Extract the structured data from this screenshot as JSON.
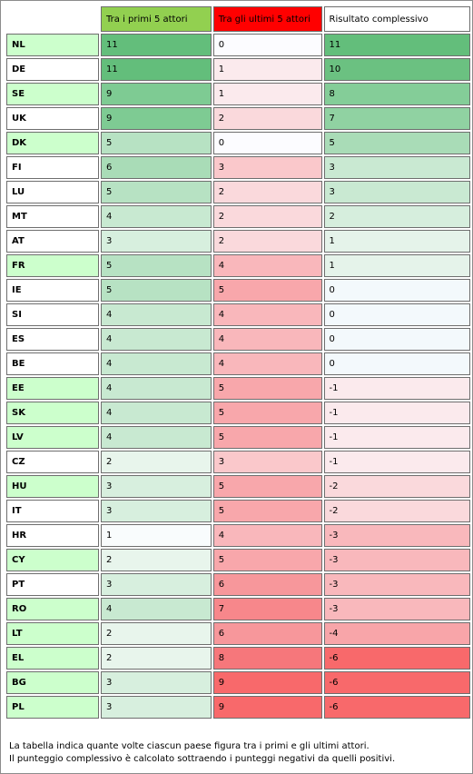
{
  "header": {
    "corner": "",
    "col1": "Tra i primi 5 attori",
    "col2": "Tra gli ultimi 5 attori",
    "col3": "Risultato complessivo",
    "col1_bg": "#92d050",
    "col2_bg": "#ff0000",
    "col3_bg": "#ffffff"
  },
  "rows": [
    {
      "country": "NL",
      "country_bg": "#ccffcc",
      "top": "11",
      "top_bg": "#63be7b",
      "bottom": "0",
      "bottom_bg": "#fcfcff",
      "total": "11",
      "total_bg": "#63be7b"
    },
    {
      "country": "DE",
      "country_bg": "#ffffff",
      "top": "11",
      "top_bg": "#63be7b",
      "bottom": "1",
      "bottom_bg": "#fbeaed",
      "total": "10",
      "total_bg": "#6bc181"
    },
    {
      "country": "SE",
      "country_bg": "#ccffcc",
      "top": "9",
      "top_bg": "#7ecb93",
      "bottom": "1",
      "bottom_bg": "#fbeaed",
      "total": "8",
      "total_bg": "#84cd98"
    },
    {
      "country": "UK",
      "country_bg": "#ffffff",
      "top": "9",
      "top_bg": "#7ecb93",
      "bottom": "2",
      "bottom_bg": "#fad9dc",
      "total": "7",
      "total_bg": "#90d2a2"
    },
    {
      "country": "DK",
      "country_bg": "#ccffcc",
      "top": "5",
      "top_bg": "#b7e2c3",
      "bottom": "0",
      "bottom_bg": "#fcfcff",
      "total": "5",
      "total_bg": "#a9dcb7"
    },
    {
      "country": "FI",
      "country_bg": "#ffffff",
      "top": "6",
      "top_bg": "#a9dcb7",
      "bottom": "3",
      "bottom_bg": "#fac8cb",
      "total": "3",
      "total_bg": "#c9e9d2"
    },
    {
      "country": "LU",
      "country_bg": "#ffffff",
      "top": "5",
      "top_bg": "#b7e2c3",
      "bottom": "2",
      "bottom_bg": "#fad9dc",
      "total": "3",
      "total_bg": "#c9e9d2"
    },
    {
      "country": "MT",
      "country_bg": "#ffffff",
      "top": "4",
      "top_bg": "#c8e9d1",
      "bottom": "2",
      "bottom_bg": "#fad9dc",
      "total": "2",
      "total_bg": "#d6eedd"
    },
    {
      "country": "AT",
      "country_bg": "#ffffff",
      "top": "3",
      "top_bg": "#d7efde",
      "bottom": "2",
      "bottom_bg": "#fad9dc",
      "total": "1",
      "total_bg": "#e5f3ea"
    },
    {
      "country": "FR",
      "country_bg": "#ccffcc",
      "top": "5",
      "top_bg": "#b7e2c3",
      "bottom": "4",
      "bottom_bg": "#f9b7bb",
      "total": "1",
      "total_bg": "#e5f3ea"
    },
    {
      "country": "IE",
      "country_bg": "#ffffff",
      "top": "5",
      "top_bg": "#b7e2c3",
      "bottom": "5",
      "bottom_bg": "#f8a7ab",
      "total": "0",
      "total_bg": "#f3f9fc"
    },
    {
      "country": "SI",
      "country_bg": "#ffffff",
      "top": "4",
      "top_bg": "#c8e9d1",
      "bottom": "4",
      "bottom_bg": "#f9b7bb",
      "total": "0",
      "total_bg": "#f3f9fc"
    },
    {
      "country": "ES",
      "country_bg": "#ffffff",
      "top": "4",
      "top_bg": "#c8e9d1",
      "bottom": "4",
      "bottom_bg": "#f9b7bb",
      "total": "0",
      "total_bg": "#f3f9fc"
    },
    {
      "country": "BE",
      "country_bg": "#ffffff",
      "top": "4",
      "top_bg": "#c8e9d1",
      "bottom": "4",
      "bottom_bg": "#f9b7bb",
      "total": "0",
      "total_bg": "#f3f9fc"
    },
    {
      "country": "EE",
      "country_bg": "#ccffcc",
      "top": "4",
      "top_bg": "#c8e9d1",
      "bottom": "5",
      "bottom_bg": "#f8a7ab",
      "total": "-1",
      "total_bg": "#fbeaed"
    },
    {
      "country": "SK",
      "country_bg": "#ccffcc",
      "top": "4",
      "top_bg": "#c8e9d1",
      "bottom": "5",
      "bottom_bg": "#f8a7ab",
      "total": "-1",
      "total_bg": "#fbeaed"
    },
    {
      "country": "LV",
      "country_bg": "#ccffcc",
      "top": "4",
      "top_bg": "#c8e9d1",
      "bottom": "5",
      "bottom_bg": "#f8a7ab",
      "total": "-1",
      "total_bg": "#fbeaed"
    },
    {
      "country": "CZ",
      "country_bg": "#ffffff",
      "top": "2",
      "top_bg": "#e8f5ec",
      "bottom": "3",
      "bottom_bg": "#fac8cb",
      "total": "-1",
      "total_bg": "#fbeaed"
    },
    {
      "country": "HU",
      "country_bg": "#ccffcc",
      "top": "3",
      "top_bg": "#d7efde",
      "bottom": "5",
      "bottom_bg": "#f8a7ab",
      "total": "-2",
      "total_bg": "#fad9dc"
    },
    {
      "country": "IT",
      "country_bg": "#ffffff",
      "top": "3",
      "top_bg": "#d7efde",
      "bottom": "5",
      "bottom_bg": "#f8a7ab",
      "total": "-2",
      "total_bg": "#fad9dc"
    },
    {
      "country": "HR",
      "country_bg": "#ffffff",
      "top": "1",
      "top_bg": "#f9fcfd",
      "bottom": "4",
      "bottom_bg": "#f9b7bb",
      "total": "-3",
      "total_bg": "#f9b8bc"
    },
    {
      "country": "CY",
      "country_bg": "#ccffcc",
      "top": "2",
      "top_bg": "#e8f5ec",
      "bottom": "5",
      "bottom_bg": "#f8a7ab",
      "total": "-3",
      "total_bg": "#f9b8bc"
    },
    {
      "country": "PT",
      "country_bg": "#ffffff",
      "top": "3",
      "top_bg": "#d7efde",
      "bottom": "6",
      "bottom_bg": "#f7979b",
      "total": "-3",
      "total_bg": "#f9b8bc"
    },
    {
      "country": "RO",
      "country_bg": "#ccffcc",
      "top": "4",
      "top_bg": "#c8e9d1",
      "bottom": "7",
      "bottom_bg": "#f7878b",
      "total": "-3",
      "total_bg": "#f9b8bc"
    },
    {
      "country": "LT",
      "country_bg": "#ccffcc",
      "top": "2",
      "top_bg": "#e8f5ec",
      "bottom": "6",
      "bottom_bg": "#f7979b",
      "total": "-4",
      "total_bg": "#f8a5a9"
    },
    {
      "country": "EL",
      "country_bg": "#ccffcc",
      "top": "2",
      "top_bg": "#e8f5ec",
      "bottom": "8",
      "bottom_bg": "#f6777b",
      "total": "-6",
      "total_bg": "#f8696b"
    },
    {
      "country": "BG",
      "country_bg": "#ccffcc",
      "top": "3",
      "top_bg": "#d7efde",
      "bottom": "9",
      "bottom_bg": "#f8696b",
      "total": "-6",
      "total_bg": "#f8696b"
    },
    {
      "country": "PL",
      "country_bg": "#ccffcc",
      "top": "3",
      "top_bg": "#d7efde",
      "bottom": "9",
      "bottom_bg": "#f8696b",
      "total": "-6",
      "total_bg": "#f8696b"
    }
  ],
  "footnote": {
    "line1": "La tabella indica quante volte ciascun paese figura tra i primi e gli ultimi attori.",
    "line2": "Il punteggio complessivo è calcolato sottraendo i punteggi negativi da quelli positivi."
  }
}
